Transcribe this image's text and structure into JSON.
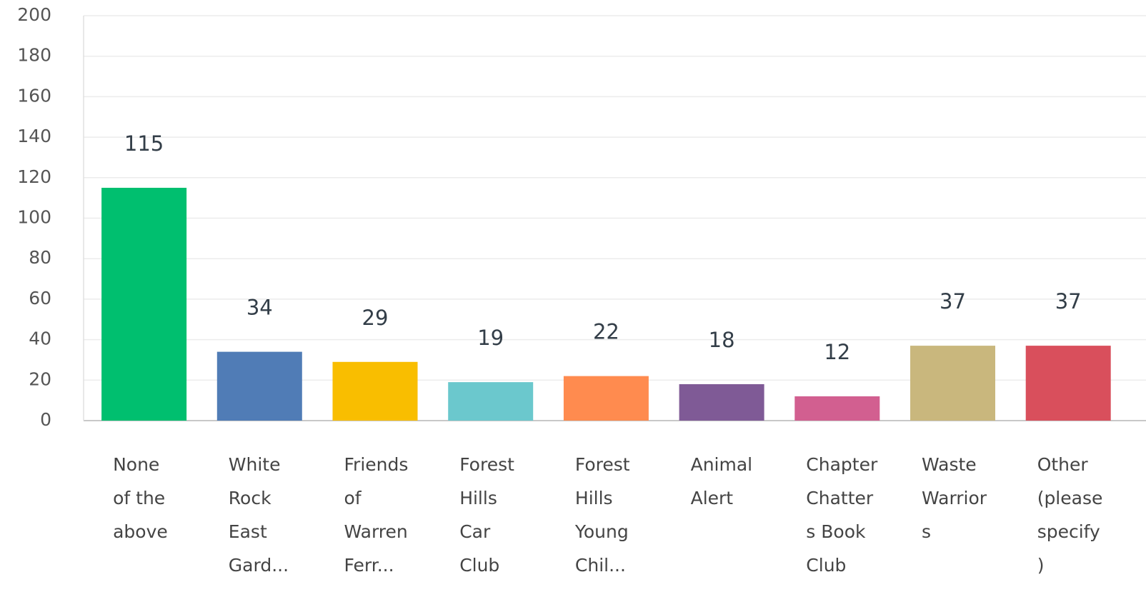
{
  "chart_data": {
    "type": "bar",
    "categories": [
      [
        "None",
        "of the",
        "above"
      ],
      [
        "White",
        "Rock",
        "East",
        "Gard..."
      ],
      [
        "Friends",
        "of",
        "Warren",
        "Ferr..."
      ],
      [
        "Forest",
        "Hills",
        "Car",
        "Club"
      ],
      [
        "Forest",
        "Hills",
        "Young",
        "Chil..."
      ],
      [
        "Animal",
        "Alert"
      ],
      [
        "Chapter",
        "Chatter",
        "s Book",
        "Club"
      ],
      [
        "Waste",
        "Warrior",
        "s"
      ],
      [
        "Other",
        "(please",
        "specify",
        ")"
      ]
    ],
    "values": [
      115,
      34,
      29,
      19,
      22,
      18,
      12,
      37,
      37
    ],
    "colors": [
      "#00bf6f",
      "#507cb6",
      "#f9be00",
      "#6bc8cd",
      "#ff8b4f",
      "#7f5a96",
      "#d25f90",
      "#c9b77d",
      "#d94f5c"
    ],
    "ylim": [
      0,
      200
    ],
    "yticks": [
      0,
      20,
      40,
      60,
      80,
      100,
      120,
      140,
      160,
      180,
      200
    ],
    "grid": true
  }
}
